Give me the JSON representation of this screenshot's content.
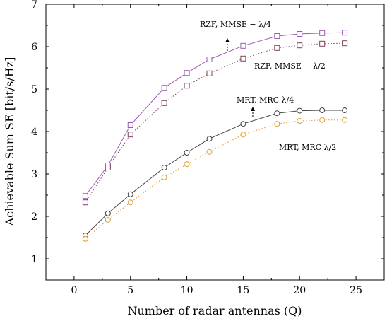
{
  "chart_data": {
    "type": "line",
    "xlabel": "Number of radar antennas (Q)",
    "ylabel": "Achievable Sum SE [bit/s/Hz]",
    "xlim": [
      -2.5,
      27.5
    ],
    "ylim": [
      0.5,
      7
    ],
    "xticks": [
      0,
      5,
      10,
      15,
      20,
      25
    ],
    "yticks": [
      1,
      2,
      3,
      4,
      5,
      6,
      7
    ],
    "grid": false,
    "legend": "none",
    "series": [
      {
        "id": "rzf-q4",
        "style": "solid",
        "marker": "square",
        "color": "#9b59b6",
        "x": [
          1,
          3,
          5,
          8,
          10,
          12,
          15,
          18,
          20,
          22,
          24
        ],
        "y": [
          2.48,
          3.2,
          4.15,
          5.03,
          5.38,
          5.7,
          6.02,
          6.25,
          6.3,
          6.32,
          6.33
        ]
      },
      {
        "id": "rzf-q2",
        "style": "dotted",
        "marker": "square",
        "color": "#7f3f5f",
        "x": [
          1,
          3,
          5,
          8,
          10,
          12,
          15,
          18,
          20,
          22,
          24
        ],
        "y": [
          2.33,
          3.15,
          3.93,
          4.67,
          5.08,
          5.37,
          5.72,
          5.97,
          6.03,
          6.07,
          6.08
        ]
      },
      {
        "id": "mrt-q4",
        "style": "solid",
        "marker": "circle",
        "color": "#444444",
        "x": [
          1,
          3,
          5,
          8,
          10,
          12,
          15,
          18,
          20,
          22,
          24
        ],
        "y": [
          1.55,
          2.07,
          2.52,
          3.15,
          3.5,
          3.83,
          4.18,
          4.43,
          4.49,
          4.5,
          4.5
        ]
      },
      {
        "id": "mrt-q2",
        "style": "dotted",
        "marker": "circle",
        "color": "#e09a2c",
        "x": [
          1,
          3,
          5,
          8,
          10,
          12,
          15,
          18,
          20,
          22,
          24
        ],
        "y": [
          1.47,
          1.92,
          2.33,
          2.92,
          3.23,
          3.52,
          3.93,
          4.18,
          4.25,
          4.27,
          4.27
        ]
      }
    ],
    "annotations": [
      {
        "id": "rzf-q4-label",
        "text": "RZF, MMSE − λ/4"
      },
      {
        "id": "rzf-q2-label",
        "text": "RZF, MMSE − λ/2"
      },
      {
        "id": "mrt-q4-label",
        "text": "MRT, MRC     λ/4"
      },
      {
        "id": "mrt-q2-label",
        "text": "MRT, MRC     λ/2"
      }
    ]
  }
}
